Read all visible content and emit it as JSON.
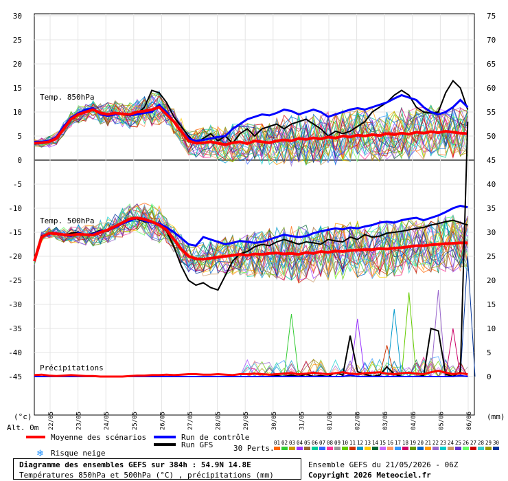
{
  "labels": {
    "y_left_unit": "(°c)",
    "y_right_unit": "(mm)",
    "alt": "Alt. 0m",
    "temp850": "Temp. 850hPa",
    "temp500": "Temp. 500hPa",
    "precip": "Précipitations",
    "perts": "30 Perts."
  },
  "legend": {
    "mean": "Moyenne des scénarios",
    "control": "Run de contrôle",
    "gfs": "Run GFS",
    "snow": "Risque neige",
    "pert_numbers": [
      "01",
      "02",
      "03",
      "04",
      "05",
      "06",
      "07",
      "08",
      "09",
      "10",
      "11",
      "12",
      "13",
      "14",
      "15",
      "16",
      "17",
      "18",
      "19",
      "20",
      "21",
      "22",
      "23",
      "24",
      "25",
      "26",
      "27",
      "28",
      "29",
      "30"
    ]
  },
  "footer": {
    "title": "Diagramme des ensembles GEFS sur 384h : 54.9N 14.8E",
    "subtitle": "Températures 850hPa et 500hPa (°C) , précipitations (mm)",
    "run": "Ensemble GEFS du 21/05/2026 - 06Z",
    "copyright": "Copyright 2026 Meteociel.fr"
  },
  "colors": {
    "mean": "#ff0000",
    "control": "#0000ff",
    "gfs": "#000000",
    "perts": [
      "#ff6600",
      "#33cc33",
      "#cc9900",
      "#9933ff",
      "#996633",
      "#00cc99",
      "#3366ff",
      "#ff3399",
      "#999999",
      "#66cc00",
      "#cc3300",
      "#0099cc",
      "#ffcc00",
      "#006633",
      "#cc66ff",
      "#ff9966",
      "#3399ff",
      "#cc0066",
      "#669900",
      "#0066cc",
      "#ff9900",
      "#9966cc",
      "#00cccc",
      "#cc9966",
      "#6633cc",
      "#66ff66",
      "#cc0000",
      "#33cccc",
      "#999900",
      "#003399"
    ]
  },
  "chart_data": {
    "type": "line",
    "x_ticks": [
      "22/05",
      "23/05",
      "24/05",
      "25/05",
      "26/05",
      "27/05",
      "28/05",
      "29/05",
      "30/05",
      "31/05",
      "01/06",
      "02/06",
      "03/06",
      "04/06",
      "05/06",
      "06/06"
    ],
    "y_left_ticks": [
      30,
      25,
      20,
      15,
      10,
      5,
      0,
      -5,
      -10,
      -15,
      -20,
      -25,
      -30,
      -35,
      -40,
      -45
    ],
    "y_right_ticks": [
      75,
      70,
      65,
      60,
      55,
      50,
      45,
      40,
      35,
      30,
      25,
      20,
      15,
      10,
      5,
      0
    ],
    "ylim_left": [
      -45,
      30
    ],
    "ylim_right": [
      0,
      75
    ],
    "step_hours": 6,
    "t850": {
      "mean": [
        3.5,
        3.6,
        3.8,
        4.5,
        6.5,
        8.5,
        9.5,
        10.0,
        10.5,
        9.8,
        9.5,
        9.8,
        9.6,
        9.5,
        10.0,
        10.2,
        10.5,
        11.0,
        9.5,
        8.0,
        6.0,
        4.0,
        3.5,
        3.6,
        3.8,
        3.5,
        3.2,
        3.6,
        3.8,
        3.4,
        4.0,
        3.8,
        3.6,
        4.0,
        4.2,
        4.0,
        4.5,
        4.3,
        4.6,
        4.4,
        4.8,
        4.6,
        5.0,
        4.8,
        5.2,
        5.0,
        5.3,
        5.1,
        5.5,
        5.3,
        5.6,
        5.4,
        5.8,
        5.6,
        5.9,
        5.7,
        6.0,
        5.8,
        5.6,
        5.5
      ],
      "control": [
        3.8,
        3.8,
        4.0,
        4.8,
        7.0,
        8.8,
        9.8,
        10.5,
        10.8,
        9.5,
        9.2,
        9.5,
        9.6,
        9.3,
        9.5,
        9.8,
        10.0,
        11.5,
        10.0,
        8.0,
        6.0,
        4.5,
        4.0,
        4.2,
        4.5,
        4.8,
        5.0,
        6.5,
        7.5,
        8.5,
        9.0,
        9.5,
        9.3,
        9.8,
        10.5,
        10.2,
        9.5,
        10.0,
        10.5,
        10.0,
        9.0,
        9.5,
        10.0,
        10.5,
        10.8,
        10.5,
        11.0,
        11.5,
        12.0,
        12.8,
        13.5,
        13.0,
        12.5,
        11.0,
        10.0,
        9.5,
        10.0,
        11.0,
        12.5,
        11.0
      ],
      "gfs": [
        3.5,
        3.6,
        3.9,
        4.6,
        6.8,
        8.5,
        9.5,
        10.2,
        10.4,
        9.6,
        9.4,
        9.8,
        9.5,
        9.2,
        9.6,
        11.0,
        14.5,
        14.0,
        12.0,
        9.0,
        7.0,
        5.0,
        3.5,
        4.5,
        5.5,
        4.0,
        5.0,
        3.5,
        5.5,
        6.5,
        5.0,
        6.5,
        7.0,
        7.5,
        6.5,
        7.5,
        8.0,
        8.5,
        7.5,
        6.5,
        5.0,
        6.0,
        5.5,
        6.0,
        7.0,
        8.0,
        10.0,
        11.0,
        12.0,
        13.5,
        14.5,
        13.5,
        11.0,
        10.0,
        9.8,
        10.0,
        14.0,
        16.5,
        15.0,
        10.5
      ]
    },
    "t500": {
      "mean": [
        -21.0,
        -16.0,
        -15.2,
        -15.3,
        -15.5,
        -15.6,
        -15.4,
        -15.5,
        -15.6,
        -15.0,
        -14.5,
        -13.8,
        -13.0,
        -12.2,
        -12.0,
        -12.3,
        -12.8,
        -13.5,
        -14.5,
        -16.5,
        -18.5,
        -20.0,
        -20.5,
        -20.6,
        -20.4,
        -20.2,
        -20.0,
        -19.8,
        -19.6,
        -19.8,
        -19.5,
        -19.6,
        -19.4,
        -19.3,
        -19.5,
        -19.4,
        -19.6,
        -19.2,
        -19.4,
        -19.0,
        -19.2,
        -18.9,
        -19.0,
        -18.8,
        -18.7,
        -18.6,
        -18.6,
        -18.4,
        -18.5,
        -18.3,
        -18.2,
        -18.0,
        -17.8,
        -17.8,
        -17.6,
        -17.5,
        -17.4,
        -17.3,
        -17.2,
        -17.2
      ],
      "control": [
        -21.0,
        -16.0,
        -15.3,
        -15.2,
        -15.6,
        -15.8,
        -15.2,
        -15.5,
        -15.4,
        -14.8,
        -14.6,
        -14.0,
        -13.2,
        -12.6,
        -12.0,
        -12.6,
        -13.0,
        -13.2,
        -14.0,
        -15.0,
        -16.2,
        -17.5,
        -17.8,
        -16.0,
        -16.5,
        -17.0,
        -17.5,
        -17.2,
        -16.8,
        -17.0,
        -17.2,
        -17.0,
        -16.5,
        -16.0,
        -15.5,
        -15.8,
        -16.0,
        -15.8,
        -15.2,
        -14.8,
        -14.5,
        -14.2,
        -14.4,
        -14.0,
        -14.2,
        -13.8,
        -13.5,
        -13.0,
        -12.8,
        -13.0,
        -12.5,
        -12.2,
        -12.0,
        -12.5,
        -12.0,
        -11.5,
        -10.8,
        -10.0,
        -9.5,
        -9.8
      ],
      "gfs": [
        -21.0,
        -15.8,
        -15.4,
        -15.2,
        -15.6,
        -15.2,
        -15.0,
        -15.6,
        -15.2,
        -14.6,
        -14.8,
        -13.6,
        -13.0,
        -12.4,
        -12.2,
        -12.8,
        -13.0,
        -13.4,
        -14.8,
        -18.0,
        -22.0,
        -25.0,
        -26.0,
        -25.5,
        -26.5,
        -27.0,
        -24.0,
        -21.0,
        -19.5,
        -19.0,
        -18.0,
        -17.5,
        -17.8,
        -17.0,
        -16.5,
        -17.0,
        -17.5,
        -17.0,
        -17.2,
        -17.5,
        -16.5,
        -16.8,
        -17.0,
        -16.0,
        -16.5,
        -15.5,
        -16.0,
        -15.8,
        -15.2,
        -15.0,
        -14.8,
        -14.5,
        -14.2,
        -14.0,
        -13.5,
        -13.2,
        -12.8,
        -12.5,
        -13.0,
        -13.5
      ]
    },
    "precip": {
      "mean": [
        0.3,
        0.4,
        0.2,
        0.1,
        0.2,
        0.3,
        0.2,
        0.1,
        0.1,
        0.0,
        0.0,
        0.0,
        0.0,
        0.1,
        0.2,
        0.2,
        0.3,
        0.3,
        0.4,
        0.3,
        0.4,
        0.5,
        0.5,
        0.4,
        0.4,
        0.5,
        0.4,
        0.3,
        0.5,
        0.5,
        0.6,
        0.5,
        0.4,
        0.5,
        0.6,
        0.7,
        0.5,
        0.6,
        0.8,
        0.6,
        0.5,
        0.7,
        0.9,
        0.6,
        0.5,
        0.7,
        0.8,
        0.9,
        0.6,
        0.5,
        0.7,
        0.8,
        0.6,
        0.5,
        0.9,
        1.2,
        0.8,
        0.5,
        0.7,
        0.5
      ],
      "gfs": [
        0.0,
        0.0,
        0.0,
        0.0,
        0.0,
        0.0,
        0.0,
        0.0,
        0.0,
        0.0,
        0.0,
        0.0,
        0.0,
        0.0,
        0.0,
        0.0,
        0.0,
        0.0,
        0.0,
        0.0,
        0.0,
        0.0,
        0.0,
        0.0,
        0.0,
        0.0,
        0.0,
        0.0,
        0.0,
        0.0,
        0.0,
        0.0,
        0.0,
        0.2,
        0.0,
        0.3,
        0.0,
        0.5,
        0.0,
        0.2,
        0.0,
        0.8,
        0.3,
        8.5,
        1.0,
        0.5,
        0.0,
        0.3,
        2.0,
        0.5,
        0.0,
        0.0,
        0.0,
        0.2,
        10.0,
        9.5,
        0.5,
        0.0,
        1.0,
        53.0
      ],
      "control": [
        0.0,
        0.0,
        0.0,
        0.0,
        0.0,
        0.0,
        0.0,
        0.0,
        0.0,
        0.0,
        0.0,
        0.0,
        0.0,
        0.0,
        0.0,
        0.0,
        0.0,
        0.0,
        0.0,
        0.0,
        0.0,
        0.0,
        0.0,
        0.0,
        0.0,
        0.0,
        0.0,
        0.0,
        0.0,
        0.0,
        0.0,
        0.0,
        0.0,
        0.0,
        0.0,
        0.0,
        0.0,
        0.0,
        0.0,
        0.0,
        0.0,
        0.0,
        0.0,
        0.3,
        0.0,
        0.0,
        0.0,
        0.0,
        0.0,
        0.0,
        0.0,
        0.0,
        0.0,
        0.0,
        0.0,
        0.0,
        0.0,
        0.0,
        0.2,
        0.0
      ],
      "spikes": [
        {
          "pert": 2,
          "index": 35,
          "value": 13.0
        },
        {
          "pert": 4,
          "index": 44,
          "value": 12.0
        },
        {
          "pert": 11,
          "index": 48,
          "value": 6.5
        },
        {
          "pert": 12,
          "index": 49,
          "value": 14.0
        },
        {
          "pert": 10,
          "index": 51,
          "value": 17.5
        },
        {
          "pert": 8,
          "index": 53,
          "value": 4.0
        },
        {
          "pert": 22,
          "index": 55,
          "value": 18.0
        },
        {
          "pert": 18,
          "index": 57,
          "value": 10.0
        },
        {
          "pert": 30,
          "index": 59,
          "value": 25.0
        }
      ]
    }
  }
}
